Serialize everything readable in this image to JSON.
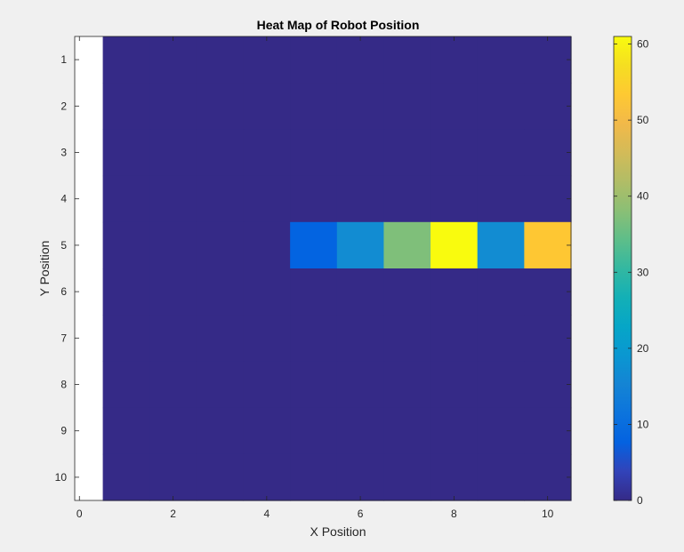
{
  "chart_data": {
    "type": "heatmap",
    "title": "Heat Map of Robot Position",
    "xlabel": "X Position",
    "ylabel": "Y Position",
    "xlim": [
      -0.1,
      10.5
    ],
    "ylim": [
      0.5,
      10.5
    ],
    "x_ticks": [
      0,
      2,
      4,
      6,
      8,
      10
    ],
    "y_ticks": [
      1,
      2,
      3,
      4,
      5,
      6,
      7,
      8,
      9,
      10
    ],
    "y_direction": "reverse",
    "grid": false,
    "colormap": "parula",
    "clim": [
      0,
      61
    ],
    "colorbar": {
      "location": "right",
      "ticks": [
        0,
        10,
        20,
        30,
        40,
        50,
        60
      ]
    },
    "x": [
      1,
      2,
      3,
      4,
      5,
      6,
      7,
      8,
      9,
      10
    ],
    "y": [
      1,
      2,
      3,
      4,
      5,
      6,
      7,
      8,
      9,
      10
    ],
    "values": [
      [
        0,
        0,
        0,
        0,
        0,
        0,
        0,
        0,
        0,
        0
      ],
      [
        0,
        0,
        0,
        0,
        0,
        0,
        0,
        0,
        0,
        0
      ],
      [
        0,
        0,
        0,
        0,
        0,
        0,
        0,
        0,
        0,
        0
      ],
      [
        0,
        0,
        0,
        0,
        0,
        0,
        0,
        0,
        0,
        0
      ],
      [
        0,
        0,
        0,
        0,
        8,
        17,
        37,
        61,
        17,
        53
      ],
      [
        0,
        0,
        0,
        0,
        0,
        0,
        0,
        0,
        0,
        0
      ],
      [
        0,
        0,
        0,
        0,
        0,
        0,
        0,
        0,
        0,
        0
      ],
      [
        0,
        0,
        0,
        0,
        0,
        0,
        0,
        0,
        0,
        0
      ],
      [
        0,
        0,
        0,
        0,
        0,
        0,
        0,
        0,
        0,
        0
      ],
      [
        0,
        0,
        0,
        0,
        0,
        0,
        0,
        0,
        0,
        0
      ]
    ]
  }
}
